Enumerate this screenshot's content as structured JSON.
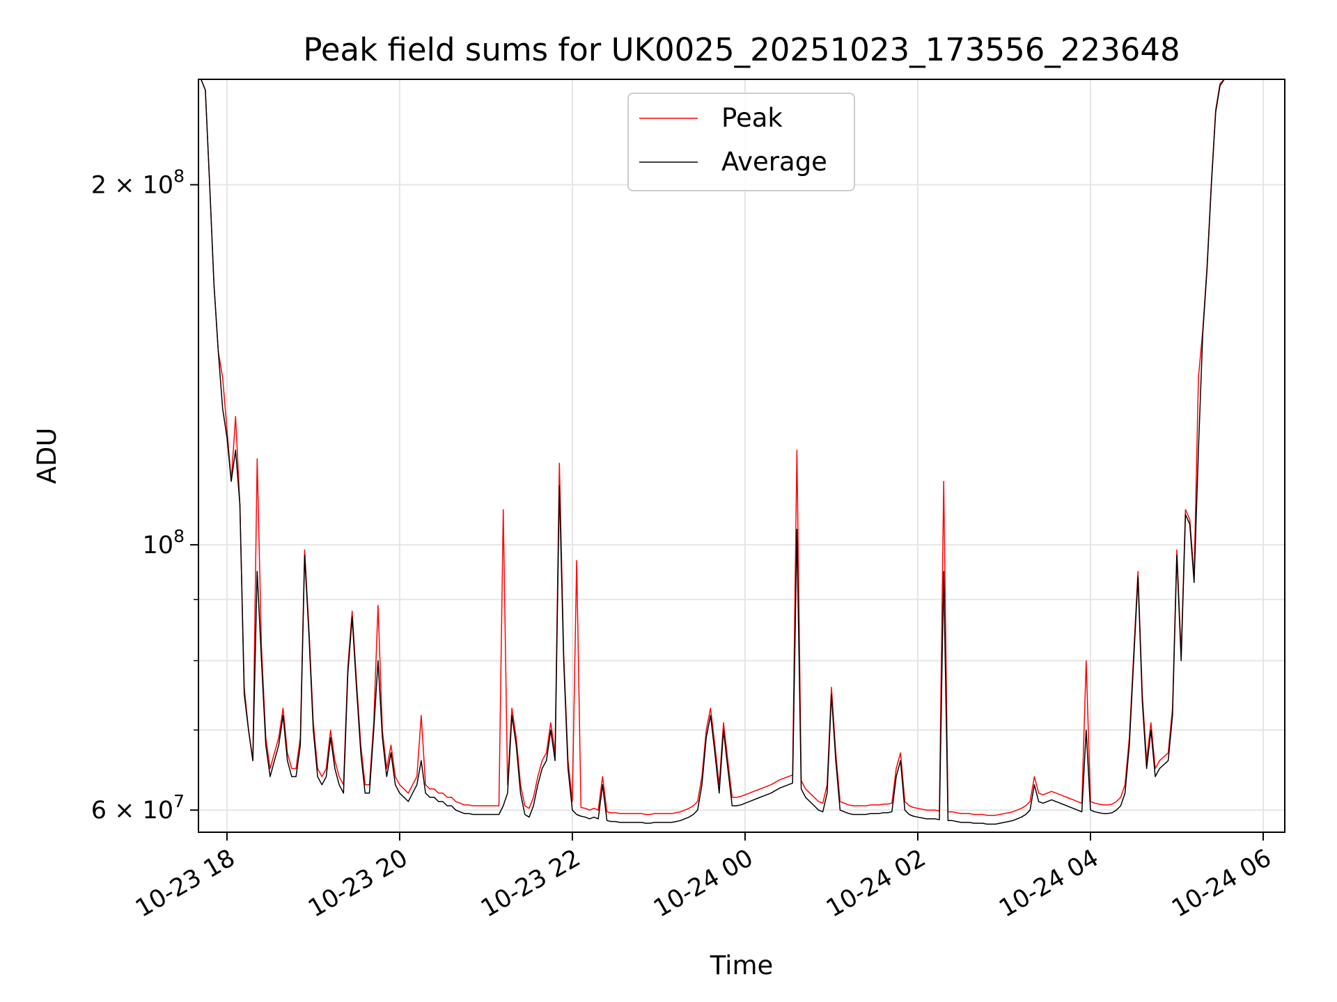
{
  "chart_data": {
    "type": "line",
    "title": "Peak field sums for UK0025_20251023_173556_223648",
    "xlabel": "Time",
    "ylabel": "ADU",
    "yscale": "log",
    "ylim": [
      57500000,
      245000000
    ],
    "xlim_hours": [
      -0.33,
      12.25
    ],
    "grid": true,
    "legend": {
      "position": "top-center",
      "entries": [
        "Peak",
        "Average"
      ]
    },
    "x_ticks": [
      {
        "hours": 0,
        "label": "10-23 18"
      },
      {
        "hours": 2,
        "label": "10-23 20"
      },
      {
        "hours": 4,
        "label": "10-23 22"
      },
      {
        "hours": 6,
        "label": "10-24 00"
      },
      {
        "hours": 8,
        "label": "10-24 02"
      },
      {
        "hours": 10,
        "label": "10-24 04"
      },
      {
        "hours": 12,
        "label": "10-24 06"
      }
    ],
    "y_ticks": [
      {
        "value": 200000000,
        "label": "2 × 10",
        "exp": "8"
      },
      {
        "value": 100000000,
        "label": "10",
        "exp": "8"
      },
      {
        "value": 60000000,
        "label": "6 × 10",
        "exp": "7"
      }
    ],
    "y_minor_ticks": [
      70000000,
      80000000,
      90000000
    ],
    "x_hours_from_1800": [
      -0.35,
      -0.3,
      -0.25,
      -0.2,
      -0.15,
      -0.1,
      -0.05,
      0.0,
      0.05,
      0.1,
      0.15,
      0.2,
      0.25,
      0.3,
      0.35,
      0.4,
      0.45,
      0.5,
      0.55,
      0.6,
      0.65,
      0.7,
      0.75,
      0.8,
      0.85,
      0.9,
      0.95,
      1.0,
      1.05,
      1.1,
      1.15,
      1.2,
      1.25,
      1.3,
      1.35,
      1.4,
      1.45,
      1.5,
      1.55,
      1.6,
      1.65,
      1.7,
      1.75,
      1.8,
      1.85,
      1.9,
      1.95,
      2.0,
      2.05,
      2.1,
      2.15,
      2.2,
      2.25,
      2.3,
      2.35,
      2.4,
      2.45,
      2.5,
      2.55,
      2.6,
      2.65,
      2.7,
      2.75,
      2.8,
      2.85,
      2.9,
      2.95,
      3.0,
      3.05,
      3.1,
      3.15,
      3.2,
      3.25,
      3.3,
      3.35,
      3.4,
      3.45,
      3.5,
      3.55,
      3.6,
      3.65,
      3.7,
      3.75,
      3.8,
      3.85,
      3.9,
      3.95,
      4.0,
      4.05,
      4.1,
      4.15,
      4.2,
      4.25,
      4.3,
      4.35,
      4.4,
      4.45,
      4.5,
      4.55,
      4.6,
      4.65,
      4.7,
      4.75,
      4.8,
      4.85,
      4.9,
      4.95,
      5.0,
      5.05,
      5.1,
      5.15,
      5.2,
      5.25,
      5.3,
      5.35,
      5.4,
      5.45,
      5.5,
      5.55,
      5.6,
      5.65,
      5.7,
      5.75,
      5.8,
      5.85,
      5.9,
      5.95,
      6.0,
      6.05,
      6.1,
      6.15,
      6.2,
      6.25,
      6.3,
      6.35,
      6.4,
      6.45,
      6.5,
      6.55,
      6.6,
      6.65,
      6.7,
      6.75,
      6.8,
      6.85,
      6.9,
      6.95,
      7.0,
      7.05,
      7.1,
      7.15,
      7.2,
      7.25,
      7.3,
      7.35,
      7.4,
      7.45,
      7.5,
      7.55,
      7.6,
      7.65,
      7.7,
      7.75,
      7.8,
      7.85,
      7.9,
      7.95,
      8.0,
      8.05,
      8.1,
      8.15,
      8.2,
      8.25,
      8.3,
      8.35,
      8.4,
      8.45,
      8.5,
      8.55,
      8.6,
      8.65,
      8.7,
      8.75,
      8.8,
      8.85,
      8.9,
      8.95,
      9.0,
      9.05,
      9.1,
      9.15,
      9.2,
      9.25,
      9.3,
      9.35,
      9.4,
      9.45,
      9.5,
      9.55,
      9.6,
      9.65,
      9.7,
      9.75,
      9.8,
      9.85,
      9.9,
      9.95,
      10.0,
      10.05,
      10.1,
      10.15,
      10.2,
      10.25,
      10.3,
      10.35,
      10.4,
      10.45,
      10.5,
      10.55,
      10.6,
      10.65,
      10.7,
      10.75,
      10.8,
      10.85,
      10.9,
      10.95,
      11.0,
      11.05,
      11.1,
      11.15,
      11.2,
      11.25,
      11.3,
      11.35,
      11.4,
      11.45,
      11.5,
      11.55,
      11.6,
      11.65,
      11.7,
      11.75,
      11.8,
      11.85,
      11.9,
      11.95,
      12.0,
      12.05,
      12.1,
      12.15,
      12.2,
      12.25
    ],
    "series": [
      {
        "name": "Average",
        "color": "#000000",
        "values": [
          245000000,
          245000000,
          240000000,
          200000000,
          165000000,
          145000000,
          130000000,
          123000000,
          113000000,
          120000000,
          108000000,
          75000000,
          70000000,
          66000000,
          95000000,
          80000000,
          68000000,
          64000000,
          66000000,
          68000000,
          72000000,
          66000000,
          64000000,
          64000000,
          68000000,
          98000000,
          84000000,
          70000000,
          64000000,
          63000000,
          64000000,
          69000000,
          65000000,
          63000000,
          62000000,
          78000000,
          87000000,
          76000000,
          67000000,
          62000000,
          62000000,
          70000000,
          80000000,
          69000000,
          64000000,
          67000000,
          63000000,
          62000000,
          61500000,
          61000000,
          62000000,
          63000000,
          66000000,
          62000000,
          61500000,
          61500000,
          61000000,
          61000000,
          60500000,
          60500000,
          60000000,
          59800000,
          59600000,
          59600000,
          59500000,
          59500000,
          59500000,
          59500000,
          59500000,
          59500000,
          59500000,
          60500000,
          62000000,
          72000000,
          68000000,
          62000000,
          59500000,
          59200000,
          60500000,
          63000000,
          65000000,
          66000000,
          70000000,
          66000000,
          112000000,
          80000000,
          65000000,
          60000000,
          59500000,
          59300000,
          59200000,
          59000000,
          59200000,
          59000000,
          63000000,
          58800000,
          58700000,
          58700000,
          58600000,
          58600000,
          58600000,
          58600000,
          58600000,
          58600000,
          58500000,
          58500000,
          58600000,
          58600000,
          58600000,
          58600000,
          58600000,
          58700000,
          58800000,
          59000000,
          59200000,
          59500000,
          60000000,
          63000000,
          69000000,
          72000000,
          67000000,
          62000000,
          70000000,
          65000000,
          60500000,
          60500000,
          60600000,
          60800000,
          61000000,
          61200000,
          61400000,
          61600000,
          61800000,
          62000000,
          62300000,
          62600000,
          62800000,
          63000000,
          63200000,
          103000000,
          62500000,
          61500000,
          61000000,
          60500000,
          60000000,
          59800000,
          62000000,
          75000000,
          66000000,
          60000000,
          59800000,
          59600000,
          59500000,
          59500000,
          59500000,
          59500000,
          59600000,
          59600000,
          59600000,
          59700000,
          59700000,
          59800000,
          64000000,
          66000000,
          60000000,
          59500000,
          59300000,
          59200000,
          59100000,
          59000000,
          59000000,
          59000000,
          58900000,
          95000000,
          58800000,
          58800000,
          58700000,
          58600000,
          58600000,
          58600000,
          58500000,
          58500000,
          58500000,
          58400000,
          58400000,
          58400000,
          58500000,
          58600000,
          58700000,
          58800000,
          59000000,
          59200000,
          59500000,
          60000000,
          63000000,
          61000000,
          60800000,
          61000000,
          61200000,
          61000000,
          60800000,
          60600000,
          60400000,
          60200000,
          60000000,
          59800000,
          70000000,
          60000000,
          59800000,
          59700000,
          59600000,
          59600000,
          59700000,
          60000000,
          60500000,
          62000000,
          68000000,
          80000000,
          94000000,
          74000000,
          65000000,
          70000000,
          64000000,
          65000000,
          65500000,
          66000000,
          72000000,
          98000000,
          80000000,
          106000000,
          104000000,
          93000000,
          120000000,
          150000000,
          170000000,
          200000000,
          230000000,
          242000000,
          245000000,
          245000000,
          245000000
        ]
      },
      {
        "name": "Peak",
        "color": "#ff0000",
        "values": [
          245000000,
          245000000,
          240000000,
          200000000,
          165000000,
          145000000,
          138000000,
          125000000,
          113000000,
          128000000,
          108000000,
          76000000,
          70000000,
          66000000,
          118000000,
          82000000,
          69000000,
          65000000,
          67000000,
          69000000,
          73000000,
          67000000,
          65000000,
          65000000,
          69000000,
          99000000,
          85000000,
          71000000,
          65000000,
          64000000,
          65000000,
          70000000,
          66000000,
          64000000,
          63000000,
          79000000,
          88000000,
          77000000,
          68000000,
          63000000,
          63000000,
          71000000,
          89000000,
          70000000,
          65000000,
          68000000,
          64000000,
          63000000,
          62500000,
          62000000,
          63000000,
          64000000,
          72000000,
          63000000,
          62500000,
          62500000,
          62000000,
          62000000,
          61500000,
          61500000,
          61000000,
          60800000,
          60600000,
          60600000,
          60500000,
          60500000,
          60500000,
          60500000,
          60500000,
          60500000,
          60500000,
          107000000,
          63000000,
          73000000,
          69000000,
          63000000,
          60500000,
          60200000,
          61500000,
          64000000,
          66000000,
          67000000,
          71000000,
          67000000,
          117000000,
          81000000,
          66000000,
          61000000,
          97000000,
          60300000,
          60200000,
          60000000,
          60200000,
          60000000,
          64000000,
          59800000,
          59700000,
          59700000,
          59600000,
          59600000,
          59600000,
          59600000,
          59600000,
          59600000,
          59500000,
          59500000,
          59600000,
          59600000,
          59600000,
          59600000,
          59600000,
          59700000,
          59800000,
          60000000,
          60200000,
          60500000,
          61000000,
          64000000,
          70000000,
          73000000,
          68000000,
          63000000,
          71000000,
          66000000,
          61500000,
          61500000,
          61600000,
          61800000,
          62000000,
          62200000,
          62400000,
          62600000,
          62800000,
          63000000,
          63300000,
          63600000,
          63800000,
          64000000,
          64200000,
          120000000,
          63500000,
          62500000,
          62000000,
          61500000,
          61000000,
          60800000,
          63000000,
          76000000,
          67000000,
          61000000,
          60800000,
          60600000,
          60500000,
          60500000,
          60500000,
          60500000,
          60600000,
          60600000,
          60600000,
          60700000,
          60700000,
          60800000,
          65000000,
          67000000,
          61000000,
          60500000,
          60300000,
          60200000,
          60100000,
          60000000,
          60000000,
          60000000,
          59900000,
          113000000,
          59800000,
          59800000,
          59700000,
          59600000,
          59600000,
          59600000,
          59500000,
          59500000,
          59500000,
          59400000,
          59400000,
          59400000,
          59500000,
          59600000,
          59700000,
          59800000,
          60000000,
          60200000,
          60500000,
          61000000,
          64000000,
          62000000,
          61800000,
          62000000,
          62200000,
          62000000,
          61800000,
          61600000,
          61400000,
          61200000,
          61000000,
          60800000,
          80000000,
          61000000,
          60800000,
          60700000,
          60600000,
          60600000,
          60700000,
          61000000,
          61500000,
          63000000,
          69000000,
          81000000,
          95000000,
          75000000,
          66000000,
          71000000,
          65000000,
          66000000,
          66500000,
          67000000,
          73000000,
          99000000,
          81000000,
          107000000,
          105000000,
          94000000,
          138000000,
          151000000,
          171000000,
          201000000,
          231000000,
          243000000,
          245000000,
          245000000,
          245000000
        ]
      }
    ]
  }
}
